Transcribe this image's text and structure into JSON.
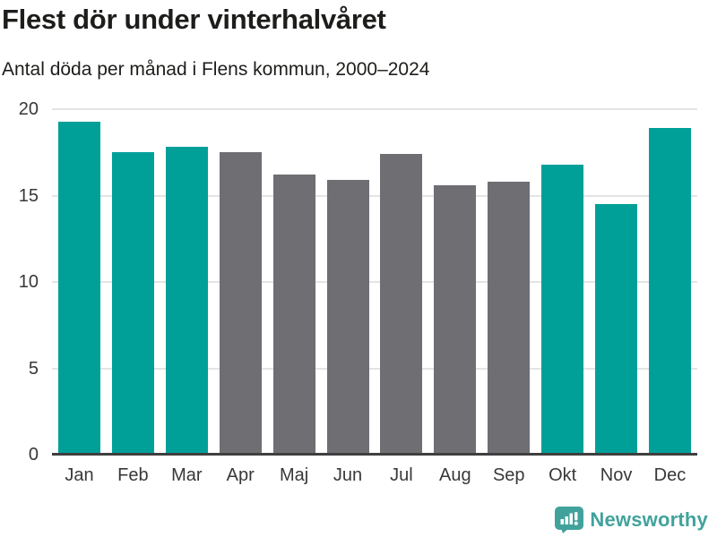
{
  "title": "Flest dör under vinterhalvåret",
  "subtitle": "Antal döda per månad i Flens kommun, 2000–2024",
  "colors": {
    "winter_bar": "#00a099",
    "summer_bar": "#6f6e73",
    "gridline": "#e4e4e4",
    "axis_line": "#3f3f3f",
    "title_text": "#1d1d1b",
    "tick_text": "#383838",
    "brand": "#41a29c"
  },
  "chart_data": {
    "type": "bar",
    "title": "Flest dör under vinterhalvåret",
    "subtitle": "Antal döda per månad i Flens kommun, 2000–2024",
    "categories": [
      "Jan",
      "Feb",
      "Mar",
      "Apr",
      "Maj",
      "Jun",
      "Jul",
      "Aug",
      "Sep",
      "Okt",
      "Nov",
      "Dec"
    ],
    "values": [
      19.3,
      17.5,
      17.8,
      17.5,
      16.2,
      15.9,
      17.4,
      15.6,
      15.8,
      16.8,
      14.5,
      18.9
    ],
    "bar_color_keys": [
      "winter_bar",
      "winter_bar",
      "winter_bar",
      "summer_bar",
      "summer_bar",
      "summer_bar",
      "summer_bar",
      "summer_bar",
      "summer_bar",
      "winter_bar",
      "winter_bar",
      "winter_bar"
    ],
    "xlabel": "",
    "ylabel": "",
    "ylim": [
      0,
      20
    ],
    "yticks": [
      0,
      5,
      10,
      15,
      20
    ],
    "grid": true,
    "legend": false
  },
  "footer": {
    "brand_name": "Newsworthy",
    "brand_icon": "newsworthy-speech-bubble-chart-icon"
  }
}
